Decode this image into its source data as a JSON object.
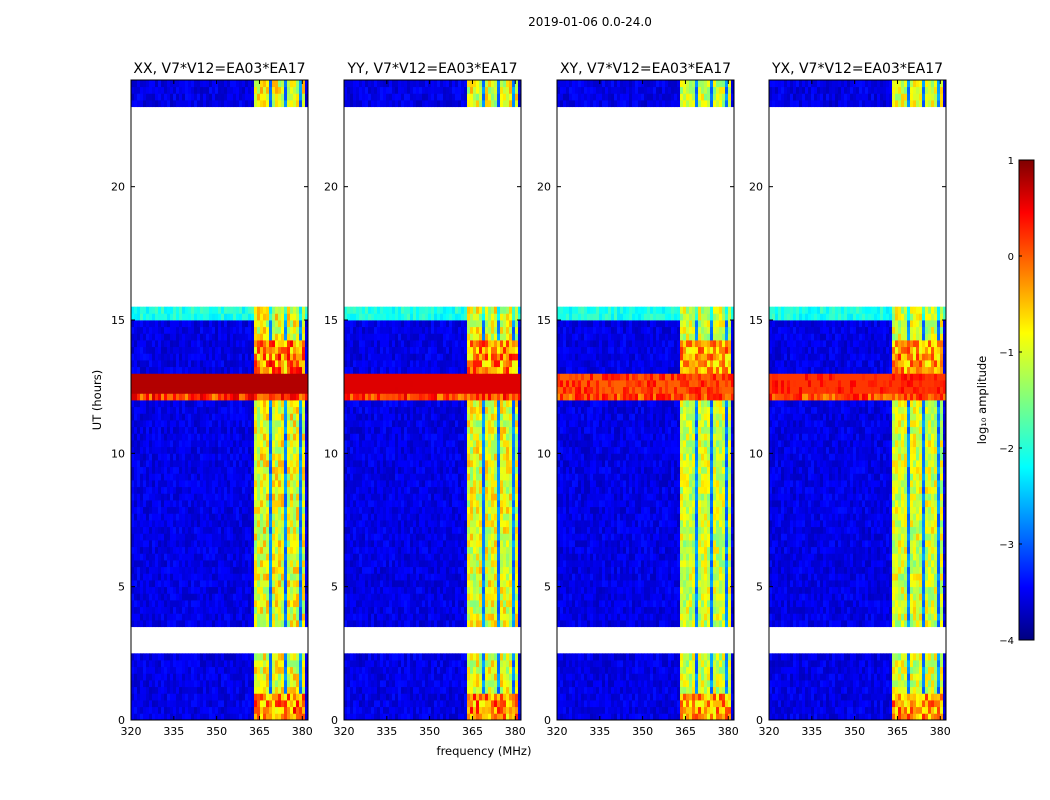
{
  "chart_data": {
    "type": "heatmap",
    "suptitle": "2019-01-06 0.0-24.0",
    "xlabel": "frequency (MHz)",
    "ylabel": "UT (hours)",
    "xlim": [
      320,
      382
    ],
    "ylim": [
      0,
      24
    ],
    "xticks": [
      320,
      335,
      350,
      365,
      380
    ],
    "yticks": [
      0,
      5,
      10,
      15,
      20
    ],
    "panels": [
      {
        "title": "XX, V7*V12=EA03*EA17",
        "rfi_strength": 1.0
      },
      {
        "title": "YY, V7*V12=EA03*EA17",
        "rfi_strength": 0.95
      },
      {
        "title": "XY, V7*V12=EA03*EA17",
        "rfi_strength": 0.8
      },
      {
        "title": "YX, V7*V12=EA03*EA17",
        "rfi_strength": 0.85
      }
    ],
    "rfi_band_mhz": [
      363,
      381
    ],
    "rfi_band_gaps_mhz": [
      369,
      374.5,
      379
    ],
    "storm_hours": [
      12.0,
      13.1
    ],
    "flagged_hours": [
      [
        22.4,
        23.0
      ],
      [
        15.6,
        22.4
      ],
      [
        8.4,
        8.5
      ],
      [
        2.5,
        3.5
      ],
      [
        0.95,
        1.1
      ]
    ],
    "colorbar": {
      "label": "log₁₀ amplitude",
      "min": -4,
      "max": 1,
      "ticks": [
        "1",
        "0",
        "−1",
        "−2",
        "−3",
        "−4"
      ],
      "colormap": "jet"
    }
  }
}
